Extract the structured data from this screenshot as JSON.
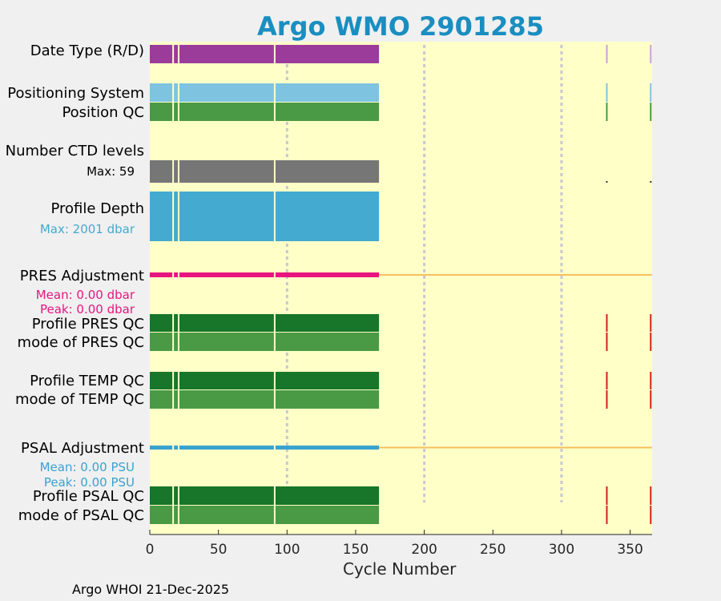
{
  "chart_data": {
    "type": "status-timeline",
    "title": "Argo WMO 2901285",
    "xlabel": "Cycle Number",
    "xlim": [
      0,
      366
    ],
    "xticks": [
      0,
      50,
      100,
      150,
      200,
      250,
      300,
      350
    ],
    "xtick_labels": [
      "0",
      "50",
      "100",
      "150",
      "200",
      "250",
      "300",
      "350"
    ],
    "vertical_dashed_lines_at": [
      100,
      200,
      300
    ],
    "data_cycle_range": [
      1,
      167
    ],
    "gap_cycles": [
      17,
      21,
      91
    ],
    "late_marker_cycles": [
      333,
      365
    ],
    "rows": [
      {
        "key": "date_type",
        "label": "Date Type (R/D)",
        "color": "#9b3c9b",
        "kind": "bar"
      },
      {
        "key": "positioning",
        "label": "Positioning System",
        "color": "#7ec4e0",
        "kind": "bar"
      },
      {
        "key": "position_qc",
        "label": "Position QC",
        "color": "#4a9a45",
        "kind": "bar"
      },
      {
        "key": "ctd_levels",
        "label": "Number CTD levels",
        "sublabel": "Max: 59",
        "color": "#767676",
        "kind": "bar"
      },
      {
        "key": "profile_depth",
        "label": "Profile Depth",
        "sublabel": "Max: 2001 dbar",
        "color": "#44aad0",
        "kind": "bar"
      },
      {
        "key": "pres_adj",
        "label": "PRES Adjustment",
        "sublabel": "Mean: 0.00 dbar",
        "sublabel2": "Peak: 0.00 dbar",
        "color": "#e8157f",
        "kind": "adjustment",
        "mean": 0.0,
        "peak": 0.0,
        "unit": "dbar"
      },
      {
        "key": "profile_pres_qc",
        "label": "Profile PRES QC",
        "color": "#17762a",
        "kind": "bar"
      },
      {
        "key": "mode_pres_qc",
        "label": "mode of PRES QC",
        "color": "#4a9a45",
        "kind": "bar"
      },
      {
        "key": "profile_temp_qc",
        "label": "Profile TEMP QC",
        "color": "#17762a",
        "kind": "bar"
      },
      {
        "key": "mode_temp_qc",
        "label": "mode of TEMP QC",
        "color": "#4a9a45",
        "kind": "bar"
      },
      {
        "key": "psal_adj",
        "label": "PSAL Adjustment",
        "sublabel": "Mean: 0.00 PSU",
        "sublabel2": "Peak: 0.00 PSU",
        "color": "#3aa2d0",
        "kind": "adjustment",
        "mean": 0.0,
        "peak": 0.0,
        "unit": "PSU"
      },
      {
        "key": "profile_psal_qc",
        "label": "Profile PSAL QC",
        "color": "#17762a",
        "kind": "bar"
      },
      {
        "key": "mode_psal_qc",
        "label": "mode of PSAL QC",
        "color": "#4a9a45",
        "kind": "bar"
      }
    ],
    "colors": {
      "plot_background": "#ffffc8",
      "figure_background": "#f0f0f0",
      "title": "#1a8ec0",
      "adjustment_baseline": "#f5c060",
      "dashed_line": "#c8c8d0",
      "late_marker_bad": "#d42020",
      "ctd_sublabel": "#000000"
    }
  },
  "footer": {
    "text": "Argo WHOI 21-Dec-2025"
  }
}
